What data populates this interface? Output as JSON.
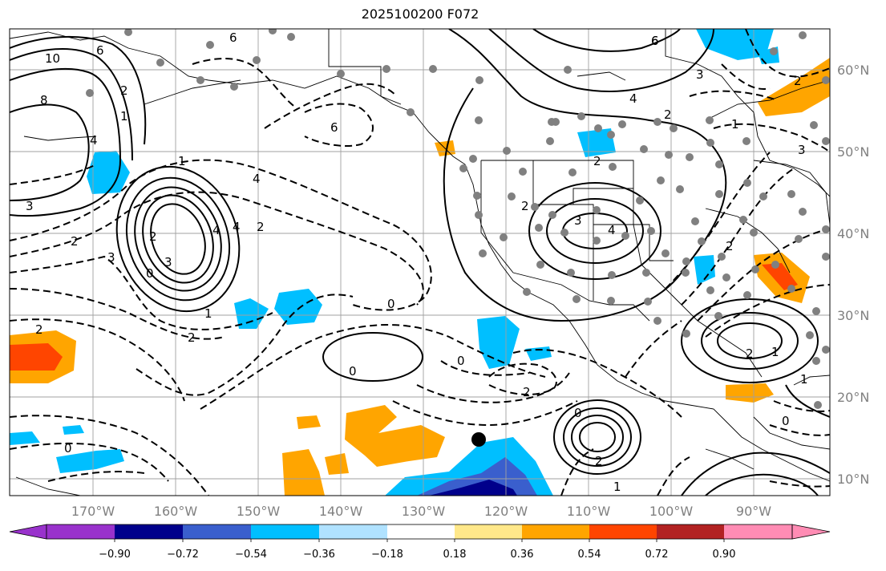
{
  "title": "2025100200 F072",
  "longitude_labels": [
    "170°W",
    "160°W",
    "150°W",
    "140°W",
    "130°W",
    "120°W",
    "110°W",
    "100°W",
    "90°W"
  ],
  "latitude_labels": [
    "60°N",
    "50°N",
    "40°N",
    "30°N",
    "20°N",
    "10°N"
  ],
  "colorbar": {
    "tick_labels": [
      "−0.90",
      "−0.72",
      "−0.54",
      "−0.36",
      "−0.18",
      "0.18",
      "0.36",
      "0.54",
      "0.72",
      "0.90"
    ],
    "colors": [
      "#9932cc",
      "#00008b",
      "#3a5fcd",
      "#00bfff",
      "#b0e2ff",
      "#ffffff",
      "#ffe88a",
      "#ffa500",
      "#ff4500",
      "#b22222",
      "#ff8cb4"
    ]
  },
  "contour_labels": {
    "solid": [
      "10",
      "8",
      "6",
      "4",
      "2",
      "1",
      "3",
      "4",
      "6",
      "4",
      "3",
      "2",
      "2",
      "4",
      "3",
      "6",
      "4",
      "3",
      "2",
      "1",
      "2",
      "0",
      "2",
      "1"
    ],
    "dashed": [
      "6",
      "4",
      "2",
      "0",
      "2",
      "3",
      "0",
      "2",
      "1",
      "2",
      "0",
      "0",
      "1",
      "2",
      "0",
      "2",
      "3",
      "6",
      "2",
      "1",
      "2",
      "0",
      "1"
    ]
  },
  "station_marker": "black-dot"
}
